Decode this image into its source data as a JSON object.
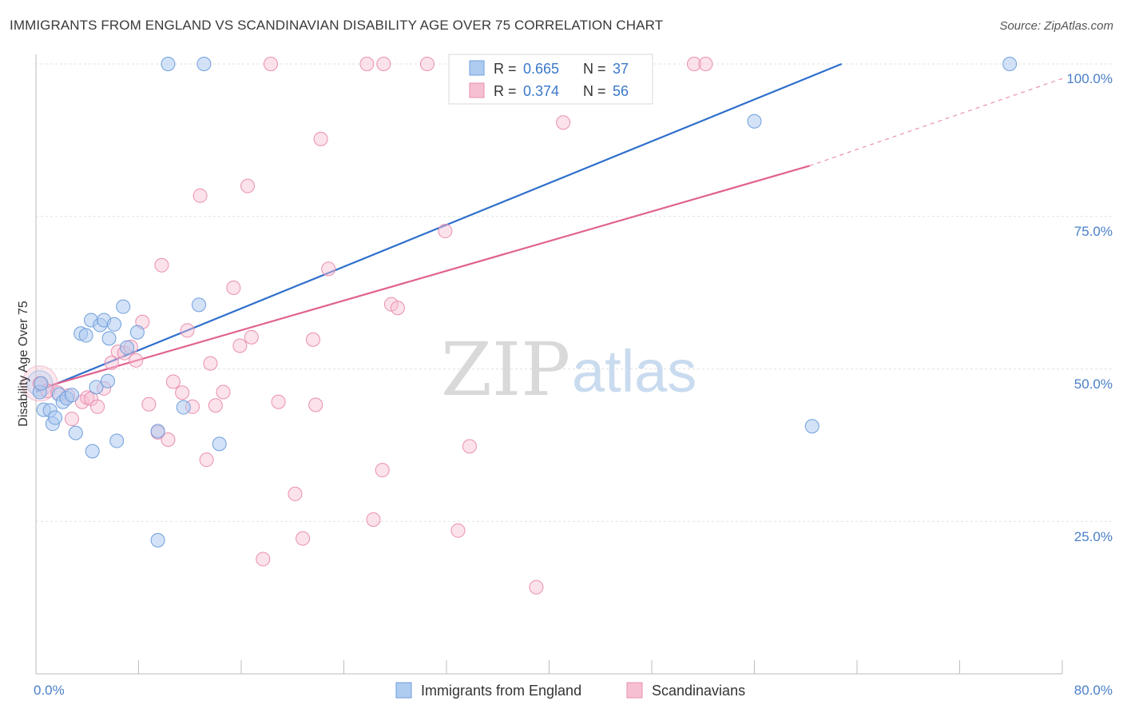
{
  "title": "IMMIGRANTS FROM ENGLAND VS SCANDINAVIAN DISABILITY AGE OVER 75 CORRELATION CHART",
  "source": "Source: ZipAtlas.com",
  "watermark": {
    "zip": "ZIP",
    "atlas": "atlas"
  },
  "colors": {
    "blue_fill": "#aecbf0",
    "blue_stroke": "#6f9fdc",
    "blue_line": "#2f6fcc",
    "pink_fill": "#f7bfd2",
    "pink_stroke": "#ea8fb0",
    "pink_line": "#e0628f",
    "grid": "#e2e2e2",
    "tick_label": "#4a7fc8"
  },
  "legend": {
    "rows": [
      {
        "r_label": "R = ",
        "r_value": "0.665",
        "n_label": "N = ",
        "n_value": "37"
      },
      {
        "r_label": "R = ",
        "r_value": "0.374",
        "n_label": "N = ",
        "n_value": "56"
      }
    ]
  },
  "chart_data": {
    "type": "scatter",
    "title": "IMMIGRANTS FROM ENGLAND VS SCANDINAVIAN DISABILITY AGE OVER 75 CORRELATION CHART",
    "xlabel": "",
    "ylabel": "Disability Age Over 75",
    "xlim": [
      0,
      80
    ],
    "ylim": [
      0,
      100
    ],
    "x_tick_labels": [
      "0.0%",
      "80.0%"
    ],
    "y_tick_labels": [
      "25.0%",
      "50.0%",
      "75.0%",
      "100.0%"
    ],
    "y_ticks": [
      25,
      50,
      75,
      100
    ],
    "grid": true,
    "legend_position": "top-center",
    "series": [
      {
        "name": "Immigrants from England",
        "color": "#aecbf0",
        "r": "0.665",
        "n": "37",
        "trend": {
          "x": [
            0,
            62.8
          ],
          "y": [
            46.2,
            100
          ]
        },
        "points": [
          [
            0.3,
            46.2
          ],
          [
            0.4,
            47.6
          ],
          [
            0.6,
            43.3
          ],
          [
            1.1,
            43.2
          ],
          [
            1.3,
            41.0
          ],
          [
            1.5,
            42.0
          ],
          [
            1.8,
            45.8
          ],
          [
            2.1,
            44.6
          ],
          [
            2.4,
            45.2
          ],
          [
            2.8,
            45.7
          ],
          [
            3.1,
            39.5
          ],
          [
            3.5,
            55.8
          ],
          [
            3.9,
            55.5
          ],
          [
            4.3,
            58.0
          ],
          [
            4.4,
            36.5
          ],
          [
            4.7,
            47.0
          ],
          [
            5.0,
            57.2
          ],
          [
            5.3,
            58.0
          ],
          [
            5.6,
            48.0
          ],
          [
            5.7,
            55.0
          ],
          [
            6.1,
            57.3
          ],
          [
            6.3,
            38.2
          ],
          [
            6.8,
            60.2
          ],
          [
            7.1,
            53.5
          ],
          [
            7.9,
            56.0
          ],
          [
            9.5,
            21.9
          ],
          [
            9.5,
            39.8
          ],
          [
            10.3,
            100.0
          ],
          [
            11.5,
            43.7
          ],
          [
            12.7,
            60.5
          ],
          [
            13.1,
            100.0
          ],
          [
            14.3,
            37.7
          ],
          [
            33.0,
            100.0
          ],
          [
            37.1,
            100.0
          ],
          [
            56.0,
            90.6
          ],
          [
            60.5,
            40.6
          ],
          [
            75.9,
            100.0
          ]
        ]
      },
      {
        "name": "Scandinavians",
        "color": "#f7bfd2",
        "r": "0.374",
        "n": "56",
        "trend": {
          "x": [
            0,
            60.3
          ],
          "y": [
            46.6,
            83.3
          ]
        },
        "trend_dashed": {
          "x": [
            60.3,
            80
          ],
          "y": [
            83.3,
            97.6
          ]
        },
        "points": [
          [
            0.3,
            47.6
          ],
          [
            0.9,
            46.4
          ],
          [
            1.7,
            46.1
          ],
          [
            2.5,
            45.6
          ],
          [
            2.8,
            41.8
          ],
          [
            3.6,
            44.6
          ],
          [
            4.0,
            45.3
          ],
          [
            4.3,
            45.1
          ],
          [
            4.8,
            43.8
          ],
          [
            5.3,
            46.8
          ],
          [
            5.9,
            51.0
          ],
          [
            6.4,
            52.8
          ],
          [
            6.9,
            52.6
          ],
          [
            7.4,
            53.6
          ],
          [
            7.8,
            51.4
          ],
          [
            8.3,
            57.7
          ],
          [
            8.8,
            44.2
          ],
          [
            9.5,
            39.6
          ],
          [
            9.8,
            67.0
          ],
          [
            10.3,
            38.4
          ],
          [
            10.7,
            47.9
          ],
          [
            11.4,
            46.1
          ],
          [
            11.8,
            56.3
          ],
          [
            12.2,
            43.8
          ],
          [
            12.8,
            78.4
          ],
          [
            13.3,
            35.1
          ],
          [
            13.6,
            50.9
          ],
          [
            14.0,
            44.0
          ],
          [
            14.6,
            46.2
          ],
          [
            15.4,
            63.3
          ],
          [
            15.9,
            53.8
          ],
          [
            16.5,
            80.0
          ],
          [
            16.8,
            55.2
          ],
          [
            17.7,
            18.8
          ],
          [
            18.3,
            100.0
          ],
          [
            18.9,
            44.6
          ],
          [
            20.2,
            29.5
          ],
          [
            20.8,
            22.2
          ],
          [
            21.6,
            54.8
          ],
          [
            21.8,
            44.1
          ],
          [
            22.2,
            87.7
          ],
          [
            22.8,
            66.4
          ],
          [
            25.8,
            100.0
          ],
          [
            26.3,
            25.3
          ],
          [
            27.0,
            33.4
          ],
          [
            27.1,
            100.0
          ],
          [
            27.7,
            60.6
          ],
          [
            30.5,
            100.0
          ],
          [
            31.9,
            72.6
          ],
          [
            32.9,
            23.5
          ],
          [
            33.8,
            37.3
          ],
          [
            39.0,
            14.2
          ],
          [
            41.1,
            90.4
          ],
          [
            51.3,
            100.0
          ],
          [
            52.2,
            100.0
          ],
          [
            28.2,
            60.0
          ]
        ]
      }
    ]
  }
}
